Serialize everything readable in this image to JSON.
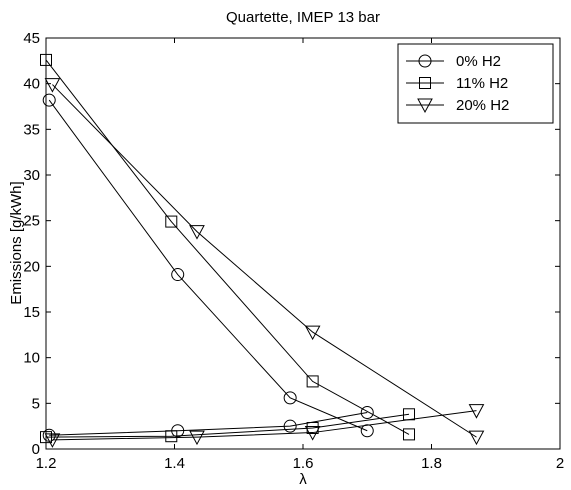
{
  "chart_data": {
    "type": "line",
    "title": "Quartette, IMEP 13 bar",
    "xlabel": "λ",
    "ylabel": "Emissions [g/kWh]",
    "xlim": [
      1.2,
      2
    ],
    "ylim": [
      0,
      45
    ],
    "xticks": [
      1.2,
      1.4,
      1.6,
      1.8,
      2
    ],
    "yticks": [
      0,
      5,
      10,
      15,
      20,
      25,
      30,
      35,
      40,
      45
    ],
    "xtick_labels": [
      "1.2",
      "1.4",
      "1.6",
      "1.8",
      "2"
    ],
    "ytick_labels": [
      "0",
      "5",
      "10",
      "15",
      "20",
      "25",
      "30",
      "35",
      "40",
      "45"
    ],
    "grid": false,
    "legend_position": "top-right",
    "series": [
      {
        "name": "0% H2",
        "marker": "circle",
        "upper": {
          "x": [
            1.205,
            1.405,
            1.58,
            1.7
          ],
          "y": [
            38.2,
            19.1,
            5.6,
            2.0
          ]
        },
        "lower": {
          "x": [
            1.205,
            1.405,
            1.58,
            1.7
          ],
          "y": [
            1.5,
            2.0,
            2.5,
            4.0
          ]
        }
      },
      {
        "name": "11% H2",
        "marker": "square",
        "upper": {
          "x": [
            1.2,
            1.395,
            1.615,
            1.765
          ],
          "y": [
            42.6,
            24.9,
            7.4,
            1.6
          ]
        },
        "lower": {
          "x": [
            1.2,
            1.395,
            1.615,
            1.765
          ],
          "y": [
            1.3,
            1.4,
            2.3,
            3.8
          ]
        }
      },
      {
        "name": "20% H2",
        "marker": "triangle-down",
        "upper": {
          "x": [
            1.21,
            1.435,
            1.615,
            1.87
          ],
          "y": [
            39.9,
            23.8,
            12.8,
            1.3
          ]
        },
        "lower": {
          "x": [
            1.21,
            1.435,
            1.615,
            1.87
          ],
          "y": [
            1.0,
            1.3,
            1.8,
            4.2
          ]
        }
      }
    ]
  }
}
